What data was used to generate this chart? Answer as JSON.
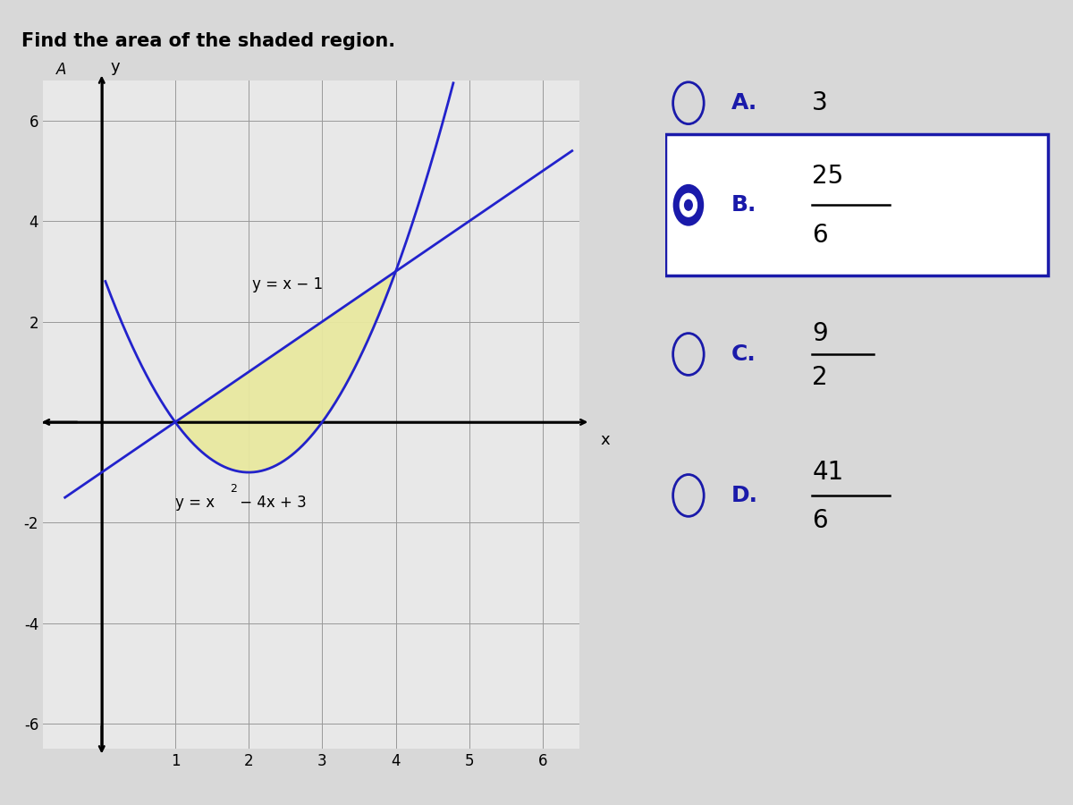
{
  "title": "Find the area of the shaded region.",
  "title_fontsize": 15,
  "graph_xlim": [
    -0.8,
    6.5
  ],
  "graph_ylim": [
    -6.5,
    6.8
  ],
  "xticks": [
    1,
    2,
    3,
    4,
    5,
    6
  ],
  "yticks": [
    -6,
    -4,
    -2,
    2,
    4,
    6
  ],
  "line_color": "#2222cc",
  "line_width": 2.0,
  "shade_color": "#e8e8a0",
  "shade_alpha": 0.95,
  "label_line1": "y = x − 1",
  "label_line2_a": "y = x",
  "label_line2_b": "2",
  "label_line2_c": " − 4x + 3",
  "background_color": "#d8d8d8",
  "graph_bg": "#e8e8e8",
  "grid_color": "#999999",
  "grid_linewidth": 0.7,
  "axis_linewidth": 1.8,
  "answer_color": "#1a1aaa",
  "selected_bg": "#ffffff"
}
